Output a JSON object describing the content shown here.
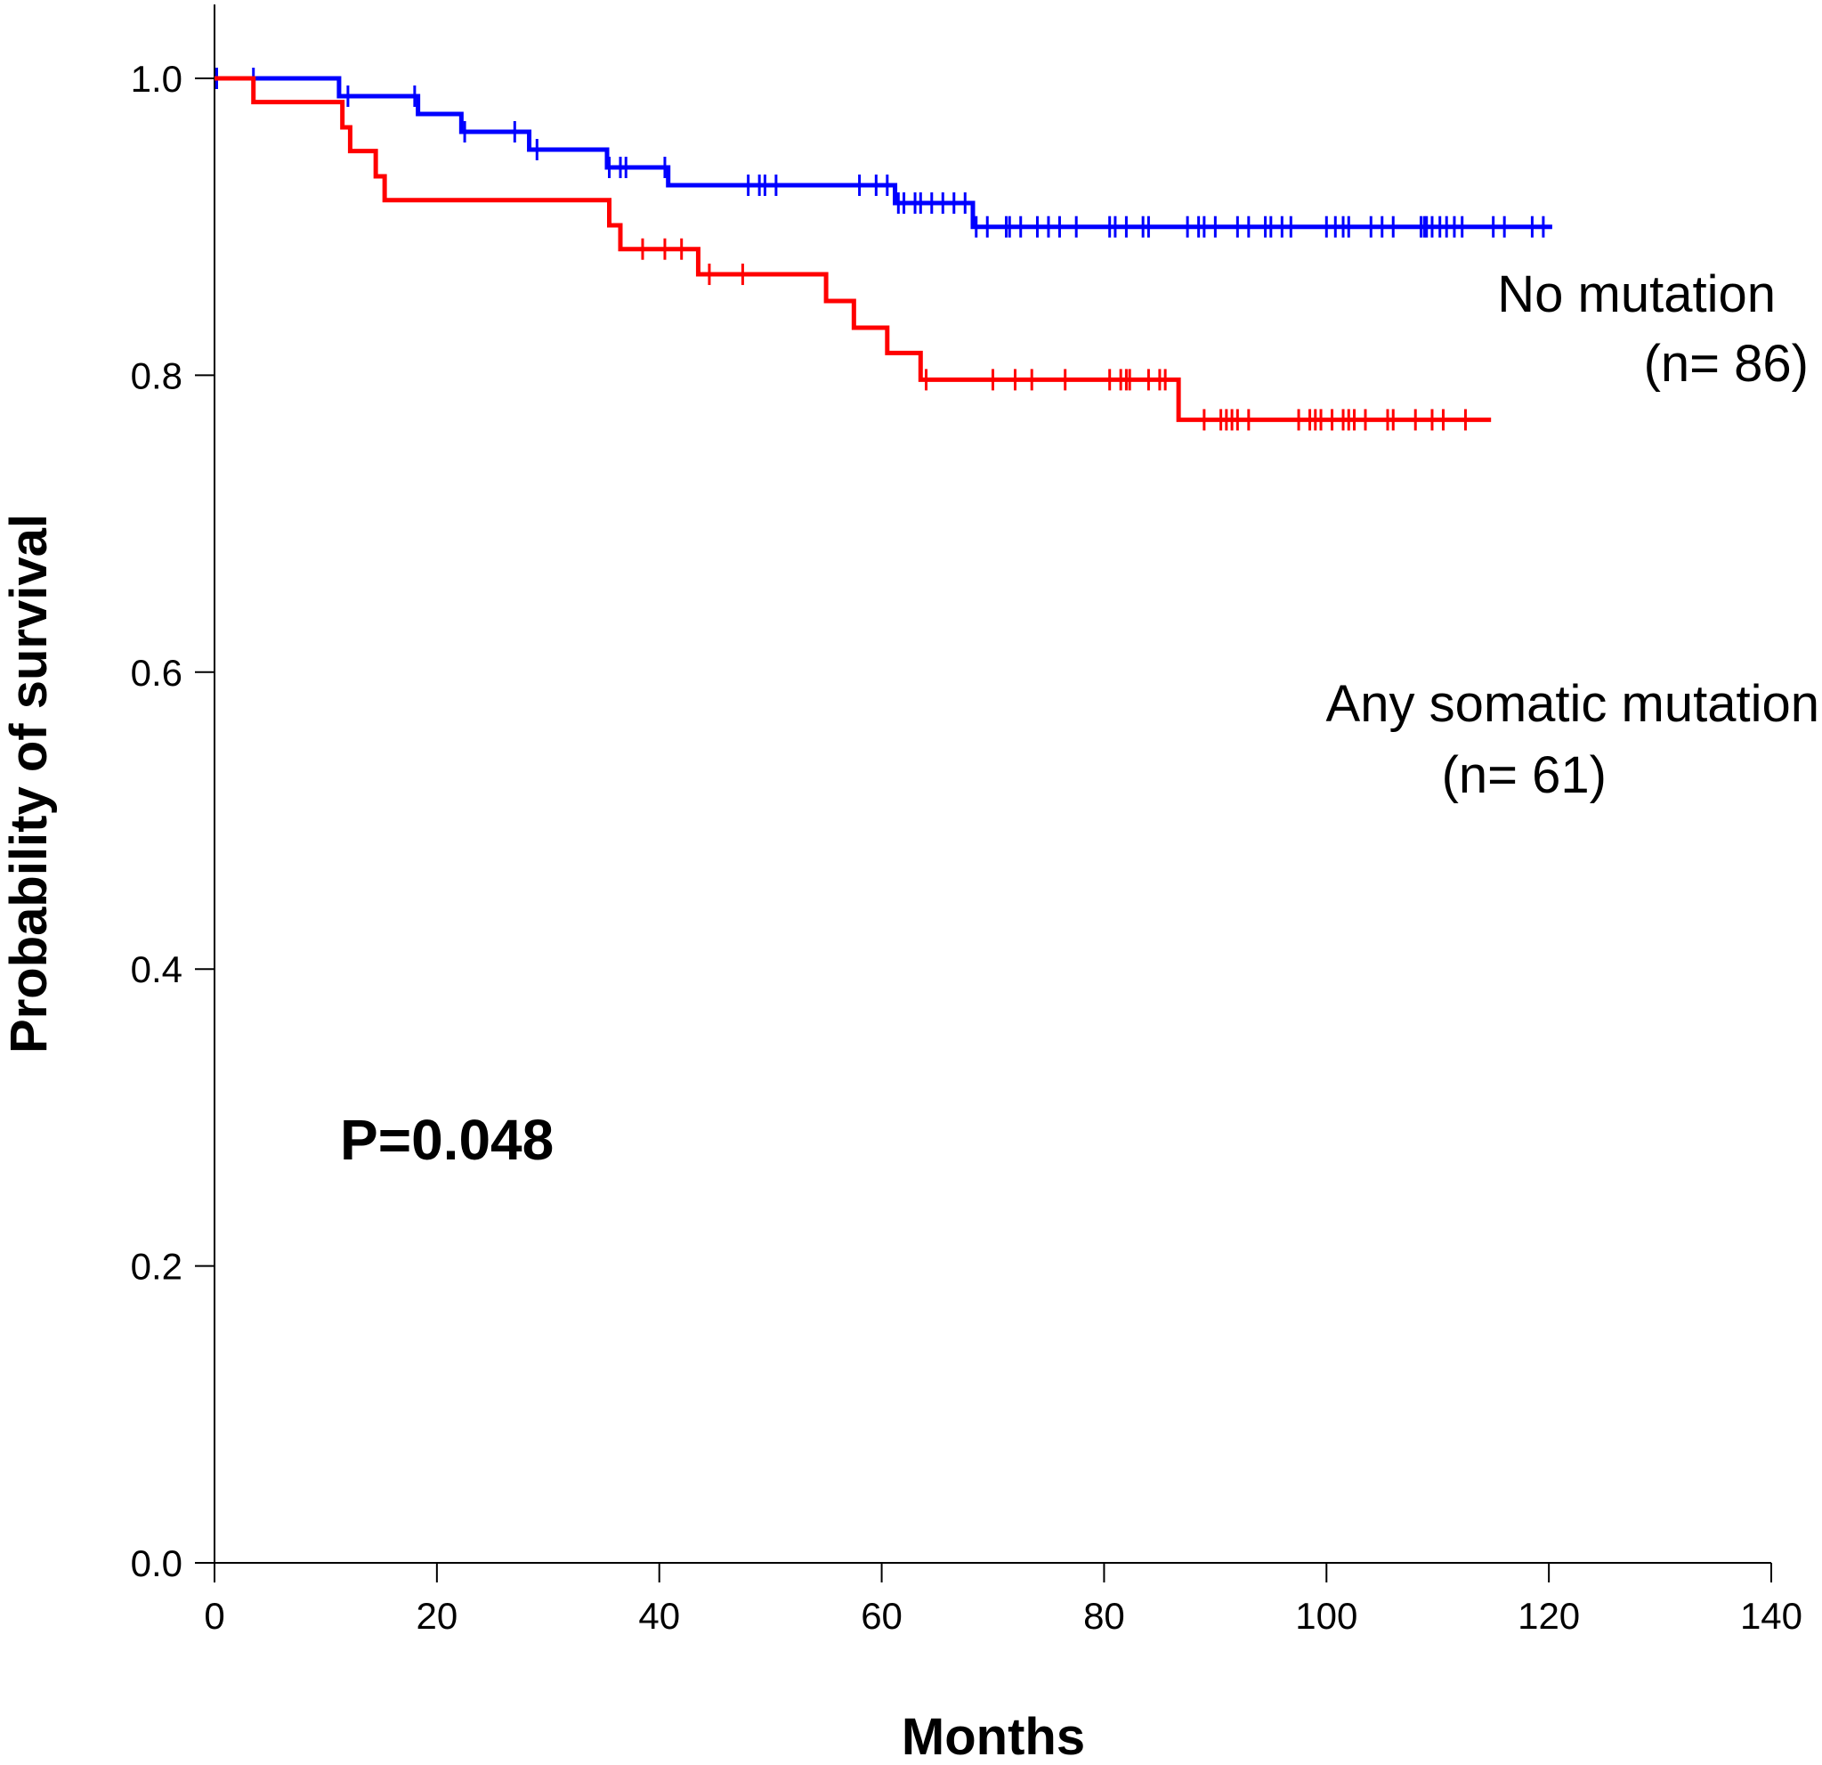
{
  "chart_data": {
    "type": "line",
    "subtype": "kaplan-meier-survival",
    "title": "",
    "xlabel": "Months",
    "ylabel": "Probability of  survival",
    "xlim": [
      0,
      140
    ],
    "ylim": [
      0,
      1.0
    ],
    "xticks": [
      0,
      20,
      40,
      60,
      80,
      100,
      120,
      140
    ],
    "xtick_labels": [
      "0",
      "20",
      "40",
      "60",
      "80",
      "100",
      "120",
      "140"
    ],
    "yticks": [
      0.0,
      0.2,
      0.4,
      0.6,
      0.8,
      1.0
    ],
    "ytick_labels": [
      "0.0",
      "0.2",
      "0.4",
      "0.6",
      "0.8",
      "1.0"
    ],
    "grid": false,
    "annotation": "P=0.048",
    "series": [
      {
        "name": "No mutation",
        "n_label": "(n= 86)",
        "color": "#0000ff",
        "steps": [
          [
            0,
            1.0
          ],
          [
            11.2,
            0.988
          ],
          [
            18.3,
            0.976
          ],
          [
            22.2,
            0.964
          ],
          [
            28.3,
            0.952
          ],
          [
            35.3,
            0.94
          ],
          [
            40.8,
            0.928
          ],
          [
            61.2,
            0.916
          ],
          [
            68.2,
            0.9
          ]
        ],
        "end_time": 120.3,
        "censored": [
          0.2,
          3.5,
          12,
          18,
          22.5,
          27,
          29,
          35.5,
          36.5,
          37,
          40.5,
          48,
          49,
          49.5,
          50.5,
          58,
          59.5,
          60.5,
          61.5,
          62,
          63,
          63.5,
          64.5,
          65.5,
          66.5,
          67.5,
          68.5,
          69.5,
          71.2,
          71.5,
          72.5,
          74,
          75,
          76,
          77.5,
          80.5,
          81,
          82,
          83.5,
          84,
          87.5,
          88.5,
          89,
          90,
          92,
          93,
          94.5,
          95,
          96,
          96.8,
          100,
          100.8,
          101.5,
          102,
          104,
          105,
          106,
          108.5,
          108.8,
          109,
          109.5,
          110.2,
          110.8,
          111.5,
          112.2,
          115,
          116,
          118.5,
          119.5
        ]
      },
      {
        "name": "Any somatic mutation",
        "n_label": "(n= 61)",
        "color": "#ff0000",
        "steps": [
          [
            0,
            1.0
          ],
          [
            3.5,
            0.984
          ],
          [
            11.5,
            0.967
          ],
          [
            12.2,
            0.951
          ],
          [
            14.5,
            0.934
          ],
          [
            15.3,
            0.918
          ],
          [
            35.5,
            0.901
          ],
          [
            36.5,
            0.885
          ],
          [
            43.5,
            0.868
          ],
          [
            55,
            0.85
          ],
          [
            57.5,
            0.832
          ],
          [
            60.5,
            0.815
          ],
          [
            63.5,
            0.797
          ],
          [
            86.7,
            0.77
          ]
        ],
        "end_time": 114.8,
        "censored": [
          38.5,
          40.5,
          42,
          44.5,
          47.5,
          64,
          70,
          72,
          73.5,
          76.5,
          80.5,
          81.5,
          82,
          82.3,
          84,
          85,
          85.5,
          89,
          90.5,
          91,
          91.5,
          92,
          93,
          97.5,
          98.5,
          99,
          99.5,
          100.5,
          101.5,
          102,
          102.5,
          103.5,
          105.5,
          106,
          108,
          109.5,
          110.5,
          112.5
        ]
      }
    ]
  }
}
